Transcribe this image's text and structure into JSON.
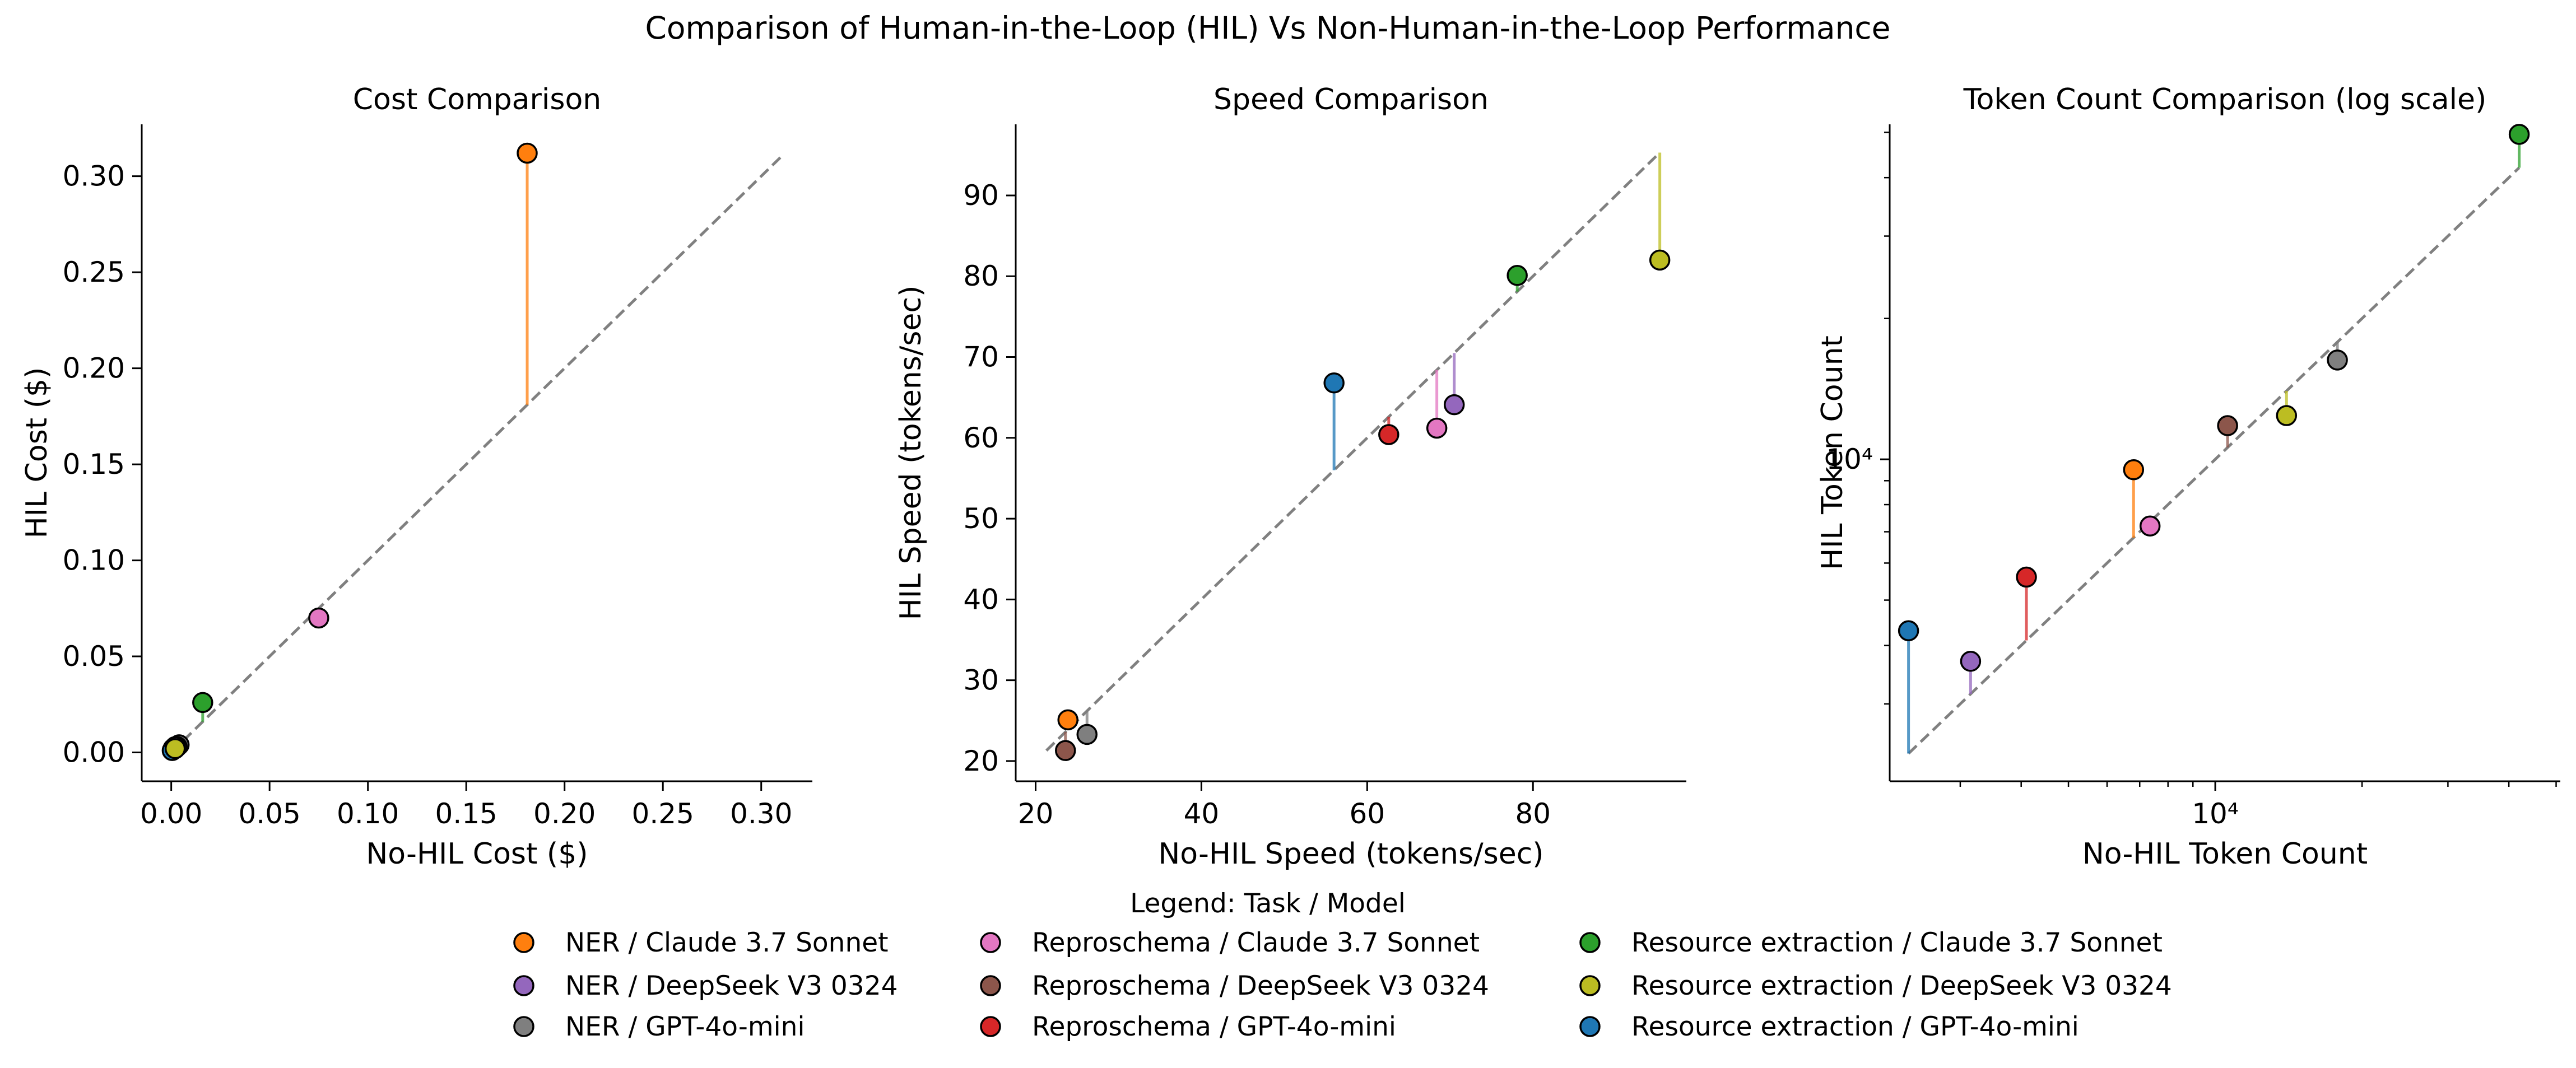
{
  "figure": {
    "title": "Comparison of Human-in-the-Loop (HIL) Vs Non-Human-in-the-Loop Performance"
  },
  "legend": {
    "title": "Legend: Task / Model",
    "items": [
      {
        "label": "NER / Claude 3.7 Sonnet",
        "color": "#ff7f0e"
      },
      {
        "label": "NER / DeepSeek V3 0324",
        "color": "#9467bd"
      },
      {
        "label": "NER / GPT-4o-mini",
        "color": "#7f7f7f"
      },
      {
        "label": "Reproschema / Claude 3.7 Sonnet",
        "color": "#e377c2"
      },
      {
        "label": "Reproschema / DeepSeek V3 0324",
        "color": "#8c564b"
      },
      {
        "label": "Reproschema / GPT-4o-mini",
        "color": "#d62728"
      },
      {
        "label": "Resource extraction / Claude 3.7 Sonnet",
        "color": "#2ca02c"
      },
      {
        "label": "Resource extraction / DeepSeek V3 0324",
        "color": "#bcbd22"
      },
      {
        "label": "Resource extraction / GPT-4o-mini",
        "color": "#1f77b4"
      }
    ]
  },
  "chart_data": [
    {
      "type": "scatter",
      "title": "Cost Comparison",
      "xlabel": "No-HIL Cost ($)",
      "ylabel": "HIL Cost ($)",
      "xlim": [
        -0.015,
        0.326
      ],
      "ylim": [
        -0.015,
        0.327
      ],
      "xticks": [
        0.0,
        0.05,
        0.1,
        0.15,
        0.2,
        0.25,
        0.3
      ],
      "yticks": [
        0.0,
        0.05,
        0.1,
        0.15,
        0.2,
        0.25,
        0.3
      ],
      "xticklabels": [
        "0.00",
        "0.05",
        "0.10",
        "0.15",
        "0.20",
        "0.25",
        "0.30"
      ],
      "yticklabels": [
        "0.00",
        "0.05",
        "0.10",
        "0.15",
        "0.20",
        "0.25",
        "0.30"
      ],
      "diagonal": [
        0.0,
        0.31
      ],
      "points": [
        {
          "series": "NER / Claude 3.7 Sonnet",
          "x": 0.181,
          "y": 0.312,
          "color": "#ff7f0e"
        },
        {
          "series": "Reproschema / Claude 3.7 Sonnet",
          "x": 0.075,
          "y": 0.07,
          "color": "#e377c2"
        },
        {
          "series": "Resource extraction / Claude 3.7 Sonnet",
          "x": 0.016,
          "y": 0.026,
          "color": "#2ca02c"
        },
        {
          "series": "NER / GPT-4o-mini",
          "x": 0.004,
          "y": 0.004,
          "color": "#7f7f7f"
        },
        {
          "series": "Reproschema / DeepSeek V3 0324",
          "x": 0.003,
          "y": 0.003,
          "color": "#8c564b"
        },
        {
          "series": "NER / DeepSeek V3 0324",
          "x": 0.002,
          "y": 0.003,
          "color": "#9467bd"
        },
        {
          "series": "Reproschema / GPT-4o-mini",
          "x": 0.001,
          "y": 0.002,
          "color": "#d62728"
        },
        {
          "series": "Resource extraction / GPT-4o-mini",
          "x": 0.0005,
          "y": 0.001,
          "color": "#1f77b4"
        },
        {
          "series": "Resource extraction / DeepSeek V3 0324",
          "x": 0.002,
          "y": 0.002,
          "color": "#bcbd22"
        }
      ]
    },
    {
      "type": "scatter",
      "title": "Speed Comparison",
      "xlabel": "No-HIL Speed (tokens/sec)",
      "ylabel": "HIL Speed (tokens/sec)",
      "xlim": [
        17.6,
        98.5
      ],
      "ylim": [
        17.5,
        98.8
      ],
      "xticks": [
        20,
        40,
        60,
        80
      ],
      "yticks": [
        20,
        30,
        40,
        50,
        60,
        70,
        80,
        90
      ],
      "xticklabels": [
        "20",
        "40",
        "60",
        "80"
      ],
      "yticklabels": [
        "20",
        "30",
        "40",
        "50",
        "60",
        "70",
        "80",
        "90"
      ],
      "diagonal": [
        21.3,
        95.3
      ],
      "points": [
        {
          "series": "NER / Claude 3.7 Sonnet",
          "x": 23.9,
          "y": 25.1,
          "color": "#ff7f0e"
        },
        {
          "series": "Reproschema / DeepSeek V3 0324",
          "x": 23.6,
          "y": 21.3,
          "color": "#8c564b"
        },
        {
          "series": "NER / GPT-4o-mini",
          "x": 26.2,
          "y": 23.3,
          "color": "#7f7f7f"
        },
        {
          "series": "Resource extraction / GPT-4o-mini",
          "x": 56.0,
          "y": 66.8,
          "color": "#1f77b4"
        },
        {
          "series": "Reproschema / GPT-4o-mini",
          "x": 62.6,
          "y": 60.4,
          "color": "#d62728"
        },
        {
          "series": "Reproschema / Claude 3.7 Sonnet",
          "x": 68.4,
          "y": 61.2,
          "color": "#e377c2"
        },
        {
          "series": "NER / DeepSeek V3 0324",
          "x": 70.5,
          "y": 64.1,
          "color": "#9467bd"
        },
        {
          "series": "Resource extraction / Claude 3.7 Sonnet",
          "x": 78.1,
          "y": 80.1,
          "color": "#2ca02c"
        },
        {
          "series": "Resource extraction / DeepSeek V3 0324",
          "x": 95.3,
          "y": 82.0,
          "color": "#bcbd22"
        }
      ]
    },
    {
      "type": "scatter",
      "title": "Token Count Comparison (log scale)",
      "xlabel": "No-HIL Token Count",
      "ylabel": "HIL Token Count",
      "xscale": "log",
      "yscale": "log",
      "xlim": [
        2150,
        51000
      ],
      "ylim": [
        2050,
        52000
      ],
      "xticks": [
        10000
      ],
      "yticks": [
        10000
      ],
      "xticklabels": [
        "10⁴"
      ],
      "yticklabels": [
        "10⁴"
      ],
      "diagonal": [
        2350,
        42000
      ],
      "points": [
        {
          "series": "Resource extraction / GPT-4o-mini",
          "x": 2350,
          "y": 4300,
          "color": "#1f77b4"
        },
        {
          "series": "NER / DeepSeek V3 0324",
          "x": 3150,
          "y": 3700,
          "color": "#9467bd"
        },
        {
          "series": "Reproschema / GPT-4o-mini",
          "x": 4100,
          "y": 5600,
          "color": "#d62728"
        },
        {
          "series": "NER / Claude 3.7 Sonnet",
          "x": 6800,
          "y": 9500,
          "color": "#ff7f0e"
        },
        {
          "series": "Reproschema / Claude 3.7 Sonnet",
          "x": 7350,
          "y": 7200,
          "color": "#e377c2"
        },
        {
          "series": "Reproschema / DeepSeek V3 0324",
          "x": 10600,
          "y": 11800,
          "color": "#8c564b"
        },
        {
          "series": "Resource extraction / DeepSeek V3 0324",
          "x": 14000,
          "y": 12400,
          "color": "#bcbd22"
        },
        {
          "series": "NER / GPT-4o-mini",
          "x": 17800,
          "y": 16300,
          "color": "#7f7f7f"
        },
        {
          "series": "Resource extraction / Claude 3.7 Sonnet",
          "x": 42000,
          "y": 49500,
          "color": "#2ca02c"
        }
      ]
    }
  ]
}
